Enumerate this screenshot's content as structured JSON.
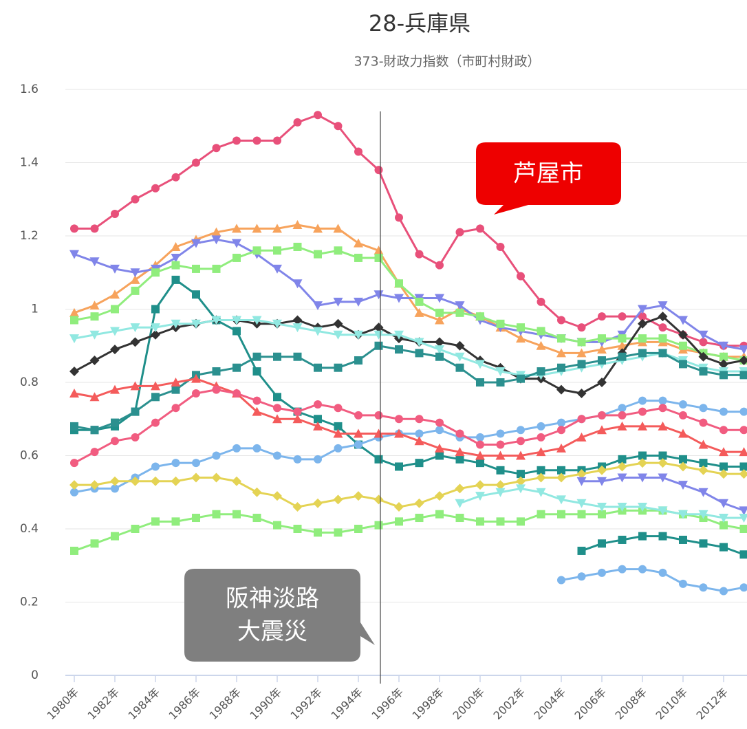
{
  "chart_data": {
    "type": "line",
    "title": "28-兵庫県",
    "subtitle": "373-財政力指数（市町村財政）",
    "annotations": [
      {
        "text": "芦屋市"
      },
      {
        "text_lines": [
          "阪神淡路",
          "大震災"
        ]
      }
    ],
    "categories": [
      "1980年",
      null,
      "1982年",
      null,
      "1984年",
      null,
      "1986年",
      null,
      "1988年",
      null,
      "1990年",
      null,
      "1992年",
      null,
      "1994年",
      null,
      "1996年",
      null,
      "1998年",
      null,
      "2000年",
      null,
      "2002年",
      null,
      "2004年",
      null,
      "2006年",
      null,
      "2008年",
      null,
      "2010年",
      null,
      "2012年",
      null
    ],
    "ylim": [
      0,
      1.6
    ],
    "yticks": [
      0,
      0.2,
      0.4,
      0.6,
      0.8,
      1,
      1.2,
      1.4,
      1.6
    ],
    "grid": true,
    "series": [
      {
        "color": "#e8507a",
        "marker": "circle",
        "values": [
          1.22,
          1.22,
          1.26,
          1.3,
          1.33,
          1.36,
          1.4,
          1.44,
          1.46,
          1.46,
          1.46,
          1.51,
          1.53,
          1.5,
          1.43,
          1.38,
          1.25,
          1.15,
          1.12,
          1.21,
          1.22,
          1.17,
          1.09,
          1.02,
          0.97,
          0.95,
          0.98,
          0.98,
          0.98,
          0.95,
          0.93,
          0.91,
          0.9,
          0.9
        ]
      },
      {
        "color": "#f7a35c",
        "marker": "triangle",
        "values": [
          0.99,
          1.01,
          1.04,
          1.08,
          1.12,
          1.17,
          1.19,
          1.21,
          1.22,
          1.22,
          1.22,
          1.23,
          1.22,
          1.22,
          1.18,
          1.16,
          1.07,
          0.99,
          0.97,
          1.0,
          0.98,
          0.95,
          0.92,
          0.9,
          0.88,
          0.88,
          0.89,
          0.9,
          0.91,
          0.91,
          0.89,
          0.88,
          0.87,
          0.87
        ]
      },
      {
        "color": "#8085e9",
        "marker": "triangle-down",
        "values": [
          1.15,
          1.13,
          1.11,
          1.1,
          1.11,
          1.14,
          1.18,
          1.19,
          1.18,
          1.15,
          1.11,
          1.07,
          1.01,
          1.02,
          1.02,
          1.04,
          1.03,
          1.03,
          1.03,
          1.01,
          0.97,
          0.95,
          0.94,
          0.93,
          0.92,
          0.91,
          0.91,
          0.93,
          1.0,
          1.01,
          0.97,
          0.93,
          0.9,
          0.89
        ]
      },
      {
        "color": "#90ed7d",
        "marker": "square",
        "values": [
          0.97,
          0.98,
          1.0,
          1.05,
          1.1,
          1.12,
          1.11,
          1.11,
          1.14,
          1.16,
          1.16,
          1.17,
          1.15,
          1.16,
          1.14,
          1.14,
          1.07,
          1.02,
          0.99,
          0.99,
          0.98,
          0.96,
          0.95,
          0.94,
          0.92,
          0.91,
          0.92,
          0.92,
          0.92,
          0.92,
          0.9,
          0.88,
          0.87,
          0.86
        ]
      },
      {
        "color": "#1f8f8a",
        "marker": "square",
        "values": [
          0.67,
          0.67,
          0.68,
          0.72,
          1.0,
          1.08,
          1.04,
          0.97,
          0.94,
          0.83,
          0.76,
          0.72,
          0.7,
          0.68,
          0.63,
          0.59,
          0.57,
          0.58,
          0.6,
          0.59,
          0.58,
          0.56,
          0.55,
          0.56,
          0.56,
          0.56,
          0.57,
          0.59,
          0.6,
          0.6,
          0.59,
          0.58,
          0.57,
          0.57
        ]
      },
      {
        "color": "#333333",
        "marker": "diamond",
        "values": [
          0.83,
          0.86,
          0.89,
          0.91,
          0.93,
          0.95,
          0.96,
          0.97,
          0.97,
          0.96,
          0.96,
          0.97,
          0.95,
          0.96,
          0.93,
          0.95,
          0.92,
          0.91,
          0.91,
          0.9,
          0.86,
          0.84,
          0.81,
          0.81,
          0.78,
          0.77,
          0.8,
          0.88,
          0.96,
          0.98,
          0.93,
          0.87,
          0.85,
          0.86
        ]
      },
      {
        "color": "#91e8e1",
        "marker": "triangle-down",
        "values": [
          0.92,
          0.93,
          0.94,
          0.95,
          0.95,
          0.96,
          0.96,
          0.97,
          0.97,
          0.97,
          0.96,
          0.95,
          0.94,
          0.93,
          0.93,
          0.93,
          0.93,
          0.91,
          0.89,
          0.87,
          0.85,
          0.83,
          0.82,
          0.82,
          0.83,
          0.84,
          0.85,
          0.86,
          0.87,
          0.88,
          0.86,
          0.84,
          0.83,
          0.83
        ]
      },
      {
        "color": "#2b908f",
        "marker": "square",
        "values": [
          0.68,
          0.67,
          0.69,
          0.72,
          0.76,
          0.78,
          0.82,
          0.83,
          0.84,
          0.87,
          0.87,
          0.87,
          0.84,
          0.84,
          0.86,
          0.9,
          0.89,
          0.88,
          0.87,
          0.84,
          0.8,
          0.8,
          0.81,
          0.83,
          0.84,
          0.85,
          0.86,
          0.87,
          0.88,
          0.88,
          0.85,
          0.83,
          0.82,
          0.82
        ]
      },
      {
        "color": "#7cb5ec",
        "marker": "circle",
        "values": [
          0.5,
          0.51,
          0.51,
          0.54,
          0.57,
          0.58,
          0.58,
          0.6,
          0.62,
          0.62,
          0.6,
          0.59,
          0.59,
          0.62,
          0.63,
          0.65,
          0.66,
          0.66,
          0.67,
          0.65,
          0.65,
          0.66,
          0.67,
          0.68,
          0.69,
          0.7,
          0.71,
          0.73,
          0.75,
          0.75,
          0.74,
          0.73,
          0.72,
          0.72
        ]
      },
      {
        "color": "#e4d354",
        "marker": "diamond",
        "values": [
          0.52,
          0.52,
          0.53,
          0.53,
          0.53,
          0.53,
          0.54,
          0.54,
          0.53,
          0.5,
          0.49,
          0.46,
          0.47,
          0.48,
          0.49,
          0.48,
          0.46,
          0.47,
          0.49,
          0.51,
          0.52,
          0.52,
          0.53,
          0.54,
          0.54,
          0.55,
          0.56,
          0.57,
          0.58,
          0.58,
          0.57,
          0.56,
          0.55,
          0.55
        ]
      },
      {
        "color": "#90ed7d",
        "marker": "square",
        "values": [
          0.34,
          0.36,
          0.38,
          0.4,
          0.42,
          0.42,
          0.43,
          0.44,
          0.44,
          0.43,
          0.41,
          0.4,
          0.39,
          0.39,
          0.4,
          0.41,
          0.42,
          0.43,
          0.44,
          0.43,
          0.42,
          0.42,
          0.42,
          0.44,
          0.44,
          0.44,
          0.44,
          0.45,
          0.45,
          0.45,
          0.44,
          0.43,
          0.41,
          0.4
        ]
      },
      {
        "color": "#f45b5b",
        "marker": "triangle",
        "values": [
          0.77,
          0.76,
          0.78,
          0.79,
          0.79,
          0.8,
          0.81,
          0.79,
          0.77,
          0.72,
          0.7,
          0.7,
          0.68,
          0.66,
          0.66,
          0.66,
          0.66,
          0.64,
          0.62,
          0.61,
          0.6,
          0.6,
          0.6,
          0.61,
          0.62,
          0.65,
          0.67,
          0.68,
          0.68,
          0.68,
          0.66,
          0.63,
          0.61,
          0.61
        ]
      },
      {
        "color": "#f15c80",
        "marker": "circle",
        "values": [
          0.58,
          0.61,
          0.64,
          0.65,
          0.69,
          0.73,
          0.77,
          0.78,
          0.77,
          0.75,
          0.73,
          0.72,
          0.74,
          0.73,
          0.71,
          0.71,
          0.7,
          0.7,
          0.69,
          0.66,
          0.63,
          0.63,
          0.64,
          0.65,
          0.67,
          0.7,
          0.71,
          0.71,
          0.72,
          0.73,
          0.71,
          0.69,
          0.67,
          0.67
        ]
      },
      {
        "color": "#7cb5ec",
        "marker": "circle",
        "values": [
          null,
          null,
          null,
          null,
          null,
          null,
          null,
          null,
          null,
          null,
          null,
          null,
          null,
          null,
          null,
          null,
          null,
          null,
          null,
          null,
          null,
          null,
          null,
          null,
          0.26,
          0.27,
          0.28,
          0.29,
          0.29,
          0.28,
          0.25,
          0.24,
          0.23,
          0.24
        ]
      },
      {
        "color": "#1f8f8a",
        "marker": "square",
        "values": [
          null,
          null,
          null,
          null,
          null,
          null,
          null,
          null,
          null,
          null,
          null,
          null,
          null,
          null,
          null,
          null,
          null,
          null,
          null,
          null,
          null,
          null,
          null,
          null,
          null,
          0.34,
          0.36,
          0.37,
          0.38,
          0.38,
          0.37,
          0.36,
          0.35,
          0.33
        ]
      },
      {
        "color": "#8085e9",
        "marker": "triangle-down",
        "values": [
          null,
          null,
          null,
          null,
          null,
          null,
          null,
          null,
          null,
          null,
          null,
          null,
          null,
          null,
          null,
          null,
          null,
          null,
          null,
          null,
          null,
          null,
          null,
          null,
          null,
          0.53,
          0.53,
          0.54,
          0.54,
          0.54,
          0.52,
          0.5,
          0.47,
          0.45
        ]
      },
      {
        "color": "#91e8e1",
        "marker": "triangle-down",
        "values": [
          null,
          null,
          null,
          null,
          null,
          null,
          null,
          null,
          null,
          null,
          null,
          null,
          null,
          null,
          null,
          null,
          null,
          null,
          null,
          0.47,
          0.49,
          0.5,
          0.51,
          0.5,
          0.48,
          0.47,
          0.46,
          0.46,
          0.46,
          0.45,
          0.44,
          0.44,
          0.43,
          0.43
        ]
      }
    ]
  }
}
